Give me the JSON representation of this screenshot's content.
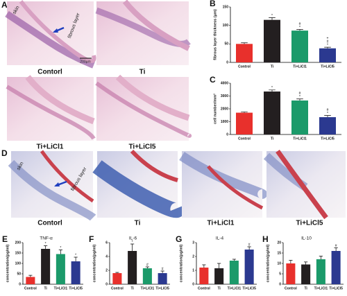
{
  "micrographs": [
    {
      "panel": "A",
      "labels": [
        "Contorl",
        "Ti",
        "Ti+LiCl1",
        "Ti+LiCl5"
      ],
      "skin": "skin",
      "fibrous": "fibrous layer",
      "scale": "200μm"
    },
    {
      "panel": "D",
      "labels": [
        "Contorl",
        "Ti",
        "Ti+LiCl1",
        "Ti+LiCl5"
      ],
      "skin": "skin",
      "fibrous": "fibrous layer"
    }
  ],
  "chart_data": [
    {
      "type": "bar",
      "panel": "B",
      "ylabel": "fibrous layer thickness (μm)",
      "categories": [
        "Control",
        "Ti",
        "Ti+LiCl1",
        "Ti+LiCl5"
      ],
      "values": [
        50,
        115,
        86,
        38
      ],
      "errors": [
        3,
        6,
        3,
        3
      ],
      "colors": [
        "#e8302c",
        "#231f20",
        "#1b9a6a",
        "#2b3990"
      ],
      "ylim": [
        0,
        150
      ],
      "yticks": [
        0,
        50,
        100,
        150
      ],
      "annotations": [
        null,
        [
          "*"
        ],
        [
          "#",
          "*"
        ],
        [
          "+",
          "#",
          "*"
        ]
      ]
    },
    {
      "type": "bar",
      "panel": "C",
      "ylabel": "cell number/mm²",
      "categories": [
        "Control",
        "Ti",
        "Ti+LiCl1",
        "Ti+LiCl5"
      ],
      "values": [
        1700,
        3350,
        2650,
        1350
      ],
      "errors": [
        60,
        120,
        120,
        130
      ],
      "colors": [
        "#e8302c",
        "#231f20",
        "#1b9a6a",
        "#2b3990"
      ],
      "ylim": [
        0,
        4000
      ],
      "yticks": [
        0,
        1000,
        2000,
        3000,
        4000
      ],
      "annotations": [
        null,
        [
          "*"
        ],
        [
          "#",
          "*"
        ],
        [
          "#",
          "*"
        ]
      ]
    },
    {
      "type": "bar",
      "panel": "E",
      "title": "TNF-α",
      "ylabel": "concentration(pg/ml)",
      "categories": [
        "Control",
        "Ti",
        "Ti+LiCl1",
        "Ti+LiCl5"
      ],
      "values": [
        35,
        170,
        145,
        110
      ],
      "errors": [
        8,
        15,
        20,
        20
      ],
      "colors": [
        "#e8302c",
        "#231f20",
        "#1b9a6a",
        "#2b3990"
      ],
      "ylim": [
        0,
        200
      ],
      "yticks": [
        0,
        50,
        100,
        150,
        200
      ],
      "annotations": [
        null,
        [
          "*"
        ],
        [
          "*"
        ],
        [
          "*"
        ]
      ]
    },
    {
      "type": "bar",
      "panel": "F",
      "title": "IL-6",
      "ylabel": "concentration(pg/ml)",
      "categories": [
        "Control",
        "Ti",
        "Ti+LiCl1",
        "Ti+LiCl5"
      ],
      "values": [
        1.6,
        4.8,
        2.3,
        1.6
      ],
      "errors": [
        0.1,
        1.0,
        0.2,
        0.3
      ],
      "colors": [
        "#e8302c",
        "#231f20",
        "#1b9a6a",
        "#2b3990"
      ],
      "ylim": [
        0,
        6
      ],
      "yticks": [
        0,
        2,
        4,
        6
      ],
      "annotations": [
        null,
        [
          "*"
        ],
        [
          "#"
        ],
        [
          "#"
        ]
      ]
    },
    {
      "type": "bar",
      "panel": "G",
      "title": "IL-4",
      "ylabel": "concentration(pg/ml)",
      "categories": [
        "Control",
        "Ti",
        "Ti+LiCl1",
        "Ti+LiCl5"
      ],
      "values": [
        1.2,
        1.15,
        1.7,
        2.5
      ],
      "errors": [
        0.2,
        0.35,
        0.1,
        0.2
      ],
      "colors": [
        "#e8302c",
        "#231f20",
        "#1b9a6a",
        "#2b3990"
      ],
      "ylim": [
        0,
        3
      ],
      "yticks": [
        0,
        1,
        2,
        3
      ],
      "annotations": [
        null,
        null,
        null,
        [
          "#"
        ]
      ]
    },
    {
      "type": "bar",
      "panel": "H",
      "title": "IL-10",
      "ylabel": "concentration(pg/ml)",
      "categories": [
        "Control",
        "Ti",
        "Ti+LiCl1",
        "Ti+LiCl5"
      ],
      "values": [
        10,
        9.5,
        12,
        16
      ],
      "errors": [
        1.5,
        1.2,
        1.5,
        1.5
      ],
      "colors": [
        "#e8302c",
        "#231f20",
        "#1b9a6a",
        "#2b3990"
      ],
      "ylim": [
        0,
        20
      ],
      "yticks": [
        0,
        5,
        10,
        15,
        20
      ],
      "annotations": [
        null,
        null,
        null,
        [
          "#"
        ]
      ]
    }
  ]
}
